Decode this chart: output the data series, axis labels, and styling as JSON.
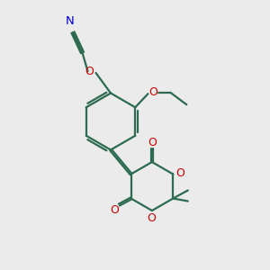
{
  "bg_color": "#ebebeb",
  "bond_color": "#2d6b50",
  "o_color": "#cc0000",
  "n_color": "#0000cc",
  "lw": 1.6,
  "figsize": [
    3.0,
    3.0
  ],
  "dpi": 100,
  "xlim": [
    0,
    10
  ],
  "ylim": [
    0,
    10
  ]
}
